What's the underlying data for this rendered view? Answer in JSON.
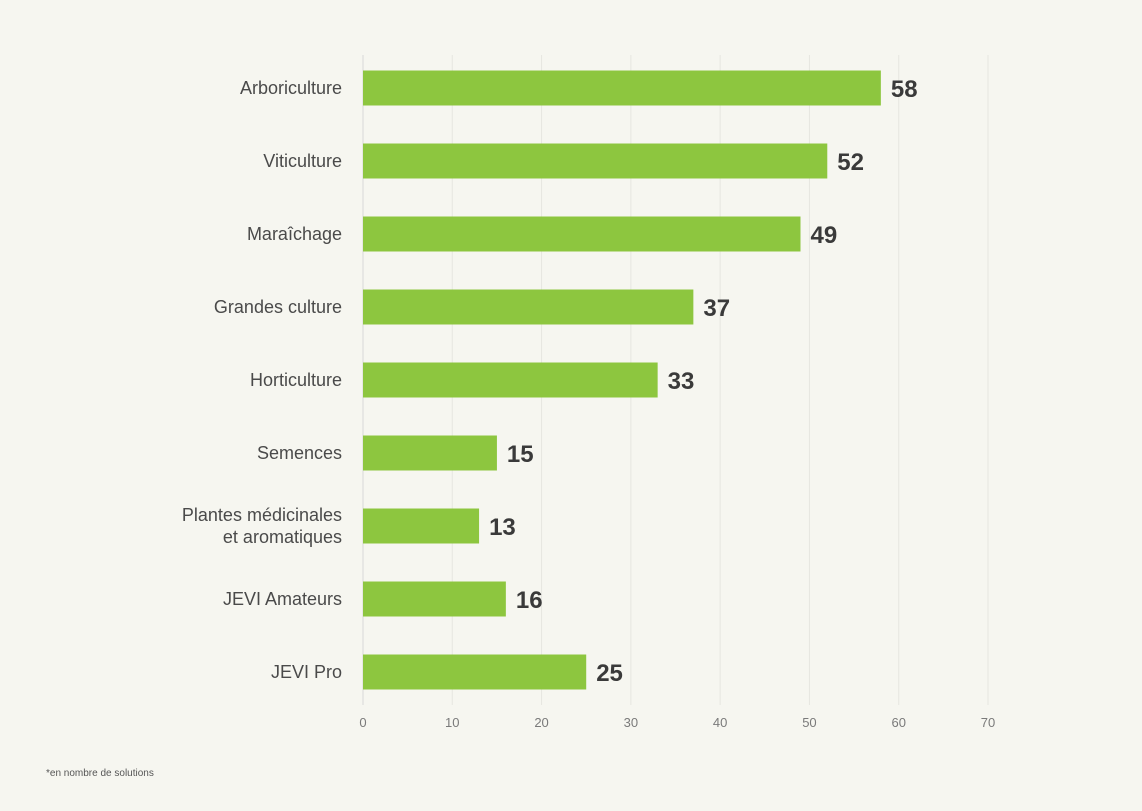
{
  "chart_data": {
    "type": "bar",
    "orientation": "horizontal",
    "categories": [
      [
        "Arboriculture"
      ],
      [
        "Viticulture"
      ],
      [
        "Maraîchage"
      ],
      [
        "Grandes culture"
      ],
      [
        "Horticulture"
      ],
      [
        "Semences"
      ],
      [
        "Plantes médicinales",
        "et aromatiques"
      ],
      [
        "JEVI Amateurs"
      ],
      [
        "JEVI Pro"
      ]
    ],
    "values": [
      58,
      52,
      49,
      37,
      33,
      15,
      13,
      16,
      25
    ],
    "xlim": [
      0,
      70
    ],
    "xticks": [
      "0",
      "10",
      "20",
      "30",
      "40",
      "50",
      "60",
      "70"
    ],
    "grid": "vertical",
    "title": "",
    "xlabel": "",
    "ylabel": "",
    "bar_color": "#8dc63f",
    "footnote": "*en nombre de solutions"
  }
}
